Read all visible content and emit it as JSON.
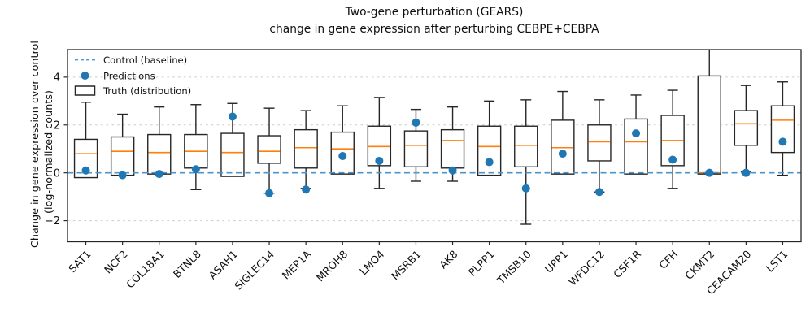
{
  "title": {
    "line1": "Two-gene perturbation (GEARS)",
    "line2": "change in gene expression after perturbing CEBPE+CEBPA"
  },
  "ylabel": {
    "line1": "Change in gene expression over control",
    "line2": "(log-normalized counts)"
  },
  "legend": {
    "position": "upper left",
    "items": [
      {
        "marker": "dashed-line-marker",
        "label": "Control (baseline)",
        "color": "#4d96cc"
      },
      {
        "marker": "dot-marker",
        "label": "Predictions",
        "color": "#1f77b4"
      },
      {
        "marker": "box-marker",
        "label": "Truth (distribution)",
        "color": "#262626"
      }
    ]
  },
  "chart_data": {
    "type": "boxplot",
    "title": "Two-gene perturbation (GEARS) — change in gene expression after perturbing CEBPE+CEBPA",
    "xlabel": "",
    "ylabel": "Change in gene expression over control (log-normalized counts)",
    "ylim": [
      -2.88,
      5.15
    ],
    "yticks": [
      -2,
      0,
      2,
      4
    ],
    "grid": true,
    "baseline_value": 0,
    "categories": [
      "SAT1",
      "NCF2",
      "COL18A1",
      "BTNL8",
      "ASAH1",
      "SIGLEC14",
      "MEP1A",
      "MROH8",
      "LMO4",
      "MSRB1",
      "AK8",
      "PLPP1",
      "TMSB10",
      "UPP1",
      "WFDC12",
      "CSF1R",
      "CFH",
      "CKMT2",
      "CEACAM20",
      "LST1"
    ],
    "series": [
      {
        "gene": "SAT1",
        "whisker_low": -0.2,
        "q1": -0.2,
        "median": 0.8,
        "q3": 1.4,
        "whisker_high": 2.95,
        "prediction": 0.1
      },
      {
        "gene": "NCF2",
        "whisker_low": -0.1,
        "q1": -0.1,
        "median": 0.9,
        "q3": 1.5,
        "whisker_high": 2.45,
        "prediction": -0.1
      },
      {
        "gene": "COL18A1",
        "whisker_low": -0.05,
        "q1": -0.05,
        "median": 0.85,
        "q3": 1.6,
        "whisker_high": 2.75,
        "prediction": -0.05
      },
      {
        "gene": "BTNL8",
        "whisker_low": -0.7,
        "q1": 0.2,
        "median": 0.9,
        "q3": 1.6,
        "whisker_high": 2.85,
        "prediction": 0.15
      },
      {
        "gene": "ASAH1",
        "whisker_low": -0.15,
        "q1": -0.15,
        "median": 0.85,
        "q3": 1.65,
        "whisker_high": 2.9,
        "prediction": 2.35
      },
      {
        "gene": "SIGLEC14",
        "whisker_low": -0.85,
        "q1": 0.4,
        "median": 0.9,
        "q3": 1.55,
        "whisker_high": 2.7,
        "prediction": -0.85
      },
      {
        "gene": "MEP1A",
        "whisker_low": -0.65,
        "q1": 0.2,
        "median": 1.05,
        "q3": 1.8,
        "whisker_high": 2.6,
        "prediction": -0.7
      },
      {
        "gene": "MROH8",
        "whisker_low": -0.05,
        "q1": -0.05,
        "median": 1.0,
        "q3": 1.7,
        "whisker_high": 2.8,
        "prediction": 0.7
      },
      {
        "gene": "LMO4",
        "whisker_low": -0.65,
        "q1": 0.3,
        "median": 1.1,
        "q3": 1.95,
        "whisker_high": 3.15,
        "prediction": 0.5
      },
      {
        "gene": "MSRB1",
        "whisker_low": -0.35,
        "q1": 0.25,
        "median": 1.15,
        "q3": 1.75,
        "whisker_high": 2.65,
        "prediction": 2.1
      },
      {
        "gene": "AK8",
        "whisker_low": -0.35,
        "q1": 0.2,
        "median": 1.35,
        "q3": 1.8,
        "whisker_high": 2.75,
        "prediction": 0.1
      },
      {
        "gene": "PLPP1",
        "whisker_low": -0.1,
        "q1": -0.1,
        "median": 1.1,
        "q3": 1.95,
        "whisker_high": 3.0,
        "prediction": 0.45
      },
      {
        "gene": "TMSB10",
        "whisker_low": -2.15,
        "q1": 0.25,
        "median": 1.15,
        "q3": 1.95,
        "whisker_high": 3.05,
        "prediction": -0.65
      },
      {
        "gene": "UPP1",
        "whisker_low": -0.05,
        "q1": -0.05,
        "median": 1.05,
        "q3": 2.2,
        "whisker_high": 3.4,
        "prediction": 0.8
      },
      {
        "gene": "WFDC12",
        "whisker_low": -0.8,
        "q1": 0.5,
        "median": 1.3,
        "q3": 2.0,
        "whisker_high": 3.05,
        "prediction": -0.8
      },
      {
        "gene": "CSF1R",
        "whisker_low": -0.05,
        "q1": -0.05,
        "median": 1.3,
        "q3": 2.25,
        "whisker_high": 3.25,
        "prediction": 1.65
      },
      {
        "gene": "CFH",
        "whisker_low": -0.65,
        "q1": 0.3,
        "median": 1.35,
        "q3": 2.4,
        "whisker_high": 3.45,
        "prediction": 0.55
      },
      {
        "gene": "CKMT2",
        "whisker_low": -0.05,
        "q1": -0.05,
        "median": 0.0,
        "q3": 4.05,
        "whisker_high": 5.5,
        "prediction": 0.0
      },
      {
        "gene": "CEACAM20",
        "whisker_low": 0.05,
        "q1": 1.15,
        "median": 2.05,
        "q3": 2.6,
        "whisker_high": 3.65,
        "prediction": 0.0
      },
      {
        "gene": "LST1",
        "whisker_low": -0.1,
        "q1": 0.85,
        "median": 2.2,
        "q3": 2.8,
        "whisker_high": 3.8,
        "prediction": 1.3
      }
    ],
    "colors": {
      "box_edge": "#262626",
      "box_fill": "#ffffff",
      "median": "#ff7f0e",
      "baseline": "#4d96cc",
      "prediction": "#1f77b4",
      "grid": "#cccccc",
      "spine": "#262626",
      "text": "#111111"
    }
  }
}
